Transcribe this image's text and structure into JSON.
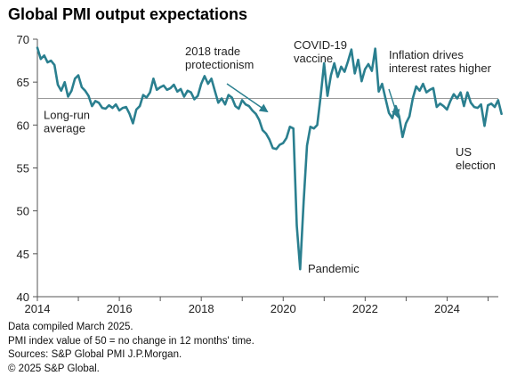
{
  "title": "Global PMI output expectations",
  "notes": [
    "Data compiled March 2025.",
    "PMI index value of 50 = no change in 12 months' time.",
    "Sources: S&P Global PMI J.P.Morgan.",
    "© 2025 S&P Global."
  ],
  "colors": {
    "line": "#2a7f8f",
    "reference": "#9a9a9a",
    "axis": "#555555"
  },
  "chart_data": {
    "type": "line",
    "title": "Global PMI output expectations",
    "xlim": [
      2014,
      2025.25
    ],
    "ylim": [
      40,
      70
    ],
    "x_ticks": [
      2014,
      2016,
      2018,
      2020,
      2022,
      2024
    ],
    "x_tick_labels": [
      "2014",
      "2016",
      "2018",
      "2020",
      "2022",
      "2024"
    ],
    "y_ticks": [
      40,
      45,
      50,
      55,
      60,
      65,
      70
    ],
    "y_tick_labels": [
      "40",
      "45",
      "50",
      "55",
      "60",
      "65",
      "70"
    ],
    "grid": false,
    "reference_line": {
      "value": 63.1,
      "label_lines": [
        "Long-run",
        "average"
      ]
    },
    "annotations": [
      {
        "lines": [
          "2018 trade",
          "protectionism"
        ],
        "x": 2018.8,
        "y": 63.0
      },
      {
        "lines": [
          "COVID-19",
          "vaccine"
        ],
        "x": 2020.9,
        "y": 66.7
      },
      {
        "lines": [
          "Inflation drives",
          "interest rates higher"
        ],
        "x": 2022.6,
        "y": 62.4
      },
      {
        "lines": [
          "Pandemic"
        ],
        "x": 2020.3,
        "y": 43.5
      },
      {
        "lines": [
          "US",
          "election"
        ],
        "x": 2024.8,
        "y": 58.5
      }
    ],
    "series": [
      {
        "start": 2014.0,
        "step": 0.0833,
        "values": [
          69.0,
          67.7,
          68.1,
          67.3,
          67.5,
          67.0,
          64.7,
          64.0,
          65.0,
          63.3,
          64.0,
          65.4,
          65.8,
          64.4,
          64.0,
          63.4,
          62.2,
          62.8,
          62.6,
          62.0,
          61.9,
          62.3,
          62.0,
          62.4,
          61.7,
          62.0,
          62.1,
          61.3,
          60.2,
          61.8,
          62.2,
          63.5,
          63.2,
          63.8,
          65.4,
          64.1,
          64.4,
          64.6,
          64.1,
          64.3,
          64.7,
          63.9,
          64.2,
          63.3,
          64.0,
          63.8,
          63.0,
          63.4,
          64.8,
          65.7,
          64.8,
          65.4,
          64.0,
          62.6,
          63.1,
          62.4,
          63.5,
          63.2,
          62.2,
          61.9,
          62.9,
          62.4,
          62.2,
          61.7,
          61.3,
          60.6,
          59.4,
          59.0,
          58.3,
          57.3,
          57.2,
          57.7,
          57.9,
          58.5,
          59.8,
          59.6,
          48.3,
          43.2,
          51.0,
          57.6,
          59.8,
          59.6,
          60.0,
          63.3,
          67.2,
          63.4,
          65.8,
          67.2,
          65.6,
          66.8,
          66.2,
          67.4,
          68.8,
          66.0,
          67.6,
          65.1,
          66.5,
          67.1,
          66.3,
          68.9,
          63.9,
          64.8,
          63.1,
          61.4,
          60.8,
          62.2,
          61.0,
          58.6,
          60.2,
          61.0,
          63.1,
          64.5,
          64.0,
          64.8,
          63.8,
          64.1,
          64.3,
          62.1,
          62.5,
          62.2,
          61.8,
          62.8,
          63.6,
          63.1,
          63.8,
          62.2,
          63.8,
          62.6,
          62.1,
          62.0,
          62.4,
          59.9,
          62.3,
          62.5,
          62.1,
          62.9,
          61.3
        ]
      }
    ]
  }
}
